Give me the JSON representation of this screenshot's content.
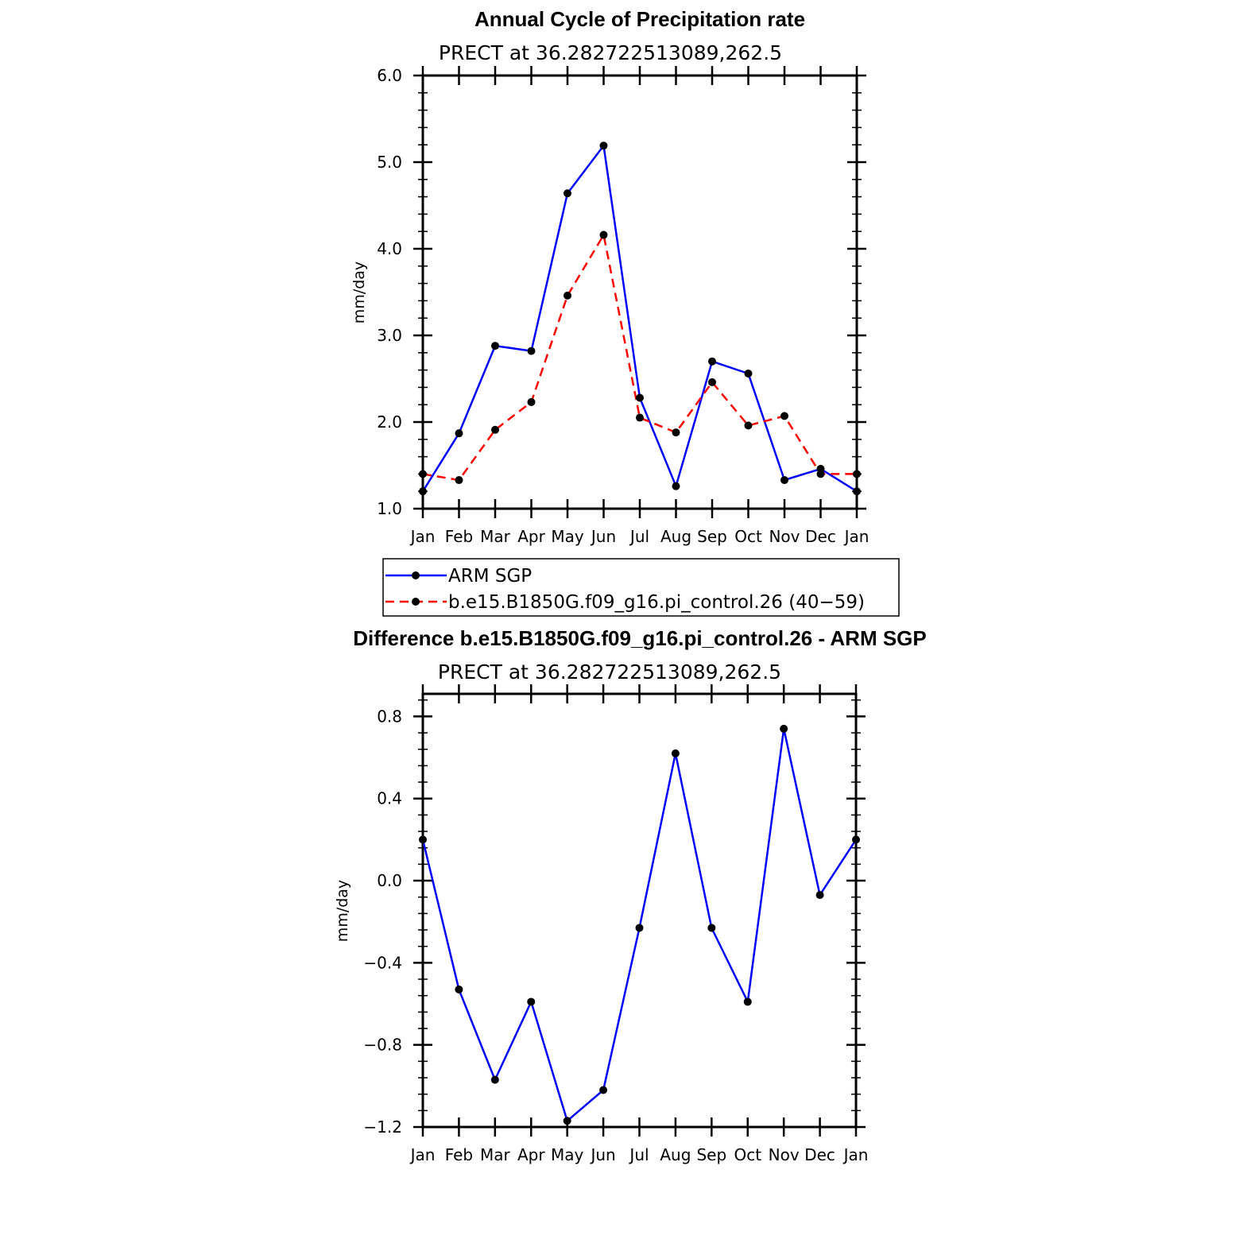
{
  "chart_data": [
    {
      "type": "line",
      "title": "Annual Cycle of Precipitation rate",
      "subtitle": "PRECT at 36.282722513089,262.5",
      "ylabel": "mm/day",
      "ylim": [
        1.0,
        6.0
      ],
      "yticks": [
        "1.0",
        "2.0",
        "3.0",
        "4.0",
        "5.0",
        "6.0"
      ],
      "categories": [
        "Jan",
        "Feb",
        "Mar",
        "Apr",
        "May",
        "Jun",
        "Jul",
        "Aug",
        "Sep",
        "Oct",
        "Nov",
        "Dec",
        "Jan"
      ],
      "grid": false,
      "legend": "bottom",
      "series": [
        {
          "name": "ARM SGP",
          "color": "#0000ff",
          "dash": "solid",
          "values": [
            1.2,
            1.87,
            2.88,
            2.82,
            4.64,
            5.19,
            2.28,
            1.26,
            2.7,
            2.56,
            1.33,
            1.46,
            1.2
          ]
        },
        {
          "name": "b.e15.B1850G.f09_g16.pi_control.26 (40−59)",
          "color": "#ff0000",
          "dash": "dashed",
          "values": [
            1.4,
            1.33,
            1.91,
            2.23,
            3.46,
            4.16,
            2.05,
            1.88,
            2.46,
            1.96,
            2.07,
            1.4,
            1.4
          ]
        }
      ]
    },
    {
      "type": "line",
      "title": "Difference b.e15.B1850G.f09_g16.pi_control.26 - ARM SGP",
      "subtitle": "PRECT at 36.282722513089,262.5",
      "ylabel": "mm/day",
      "ylim": [
        -1.2,
        0.91
      ],
      "yticks": [
        "−1.2",
        "−0.8",
        "−0.4",
        "0.0",
        "0.4",
        "0.8"
      ],
      "ytick_values": [
        -1.2,
        -0.8,
        -0.4,
        0.0,
        0.4,
        0.8
      ],
      "categories": [
        "Jan",
        "Feb",
        "Mar",
        "Apr",
        "May",
        "Jun",
        "Jul",
        "Aug",
        "Sep",
        "Oct",
        "Nov",
        "Dec",
        "Jan"
      ],
      "grid": false,
      "series": [
        {
          "color": "#0000ff",
          "dash": "solid",
          "values": [
            0.2,
            -0.53,
            -0.97,
            -0.59,
            -1.17,
            -1.02,
            -0.23,
            0.62,
            -0.23,
            -0.59,
            0.74,
            -0.07,
            0.2
          ]
        }
      ]
    }
  ]
}
